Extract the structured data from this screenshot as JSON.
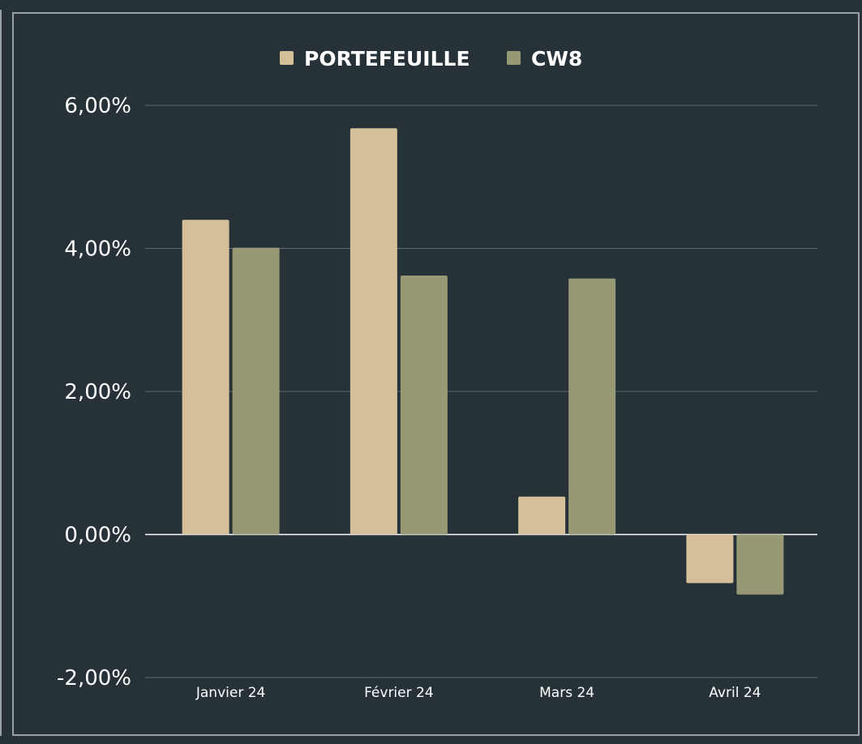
{
  "chart_data": {
    "type": "bar",
    "categories": [
      "Janvier 24",
      "Février 24",
      "Mars 24",
      "Avril 24"
    ],
    "series": [
      {
        "name": "PORTEFEUILLE",
        "color": "#d4bf99",
        "values": [
          4.4,
          5.68,
          0.53,
          -0.68
        ]
      },
      {
        "name": "CW8",
        "color": "#979874",
        "values": [
          4.01,
          3.62,
          3.58,
          -0.84
        ]
      }
    ],
    "ylim": [
      -2,
      6
    ],
    "yticks": [
      6,
      4,
      2,
      0,
      -2
    ],
    "ytick_labels": [
      "6,00%",
      "4,00%",
      "2,00%",
      "0,00%",
      "-2,00%"
    ],
    "grid": true,
    "legend_position": "top-center"
  },
  "colors": {
    "background": "#263238",
    "grid": "#5f6b70",
    "zero_line": "#ffffff"
  }
}
